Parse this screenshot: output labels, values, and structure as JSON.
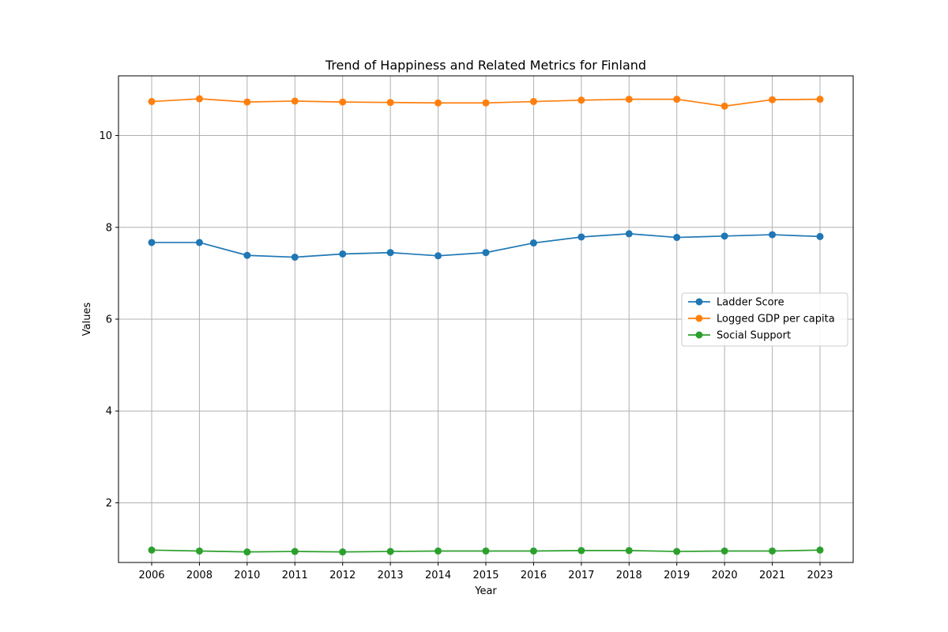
{
  "chart_data": {
    "type": "line",
    "title": "Trend of Happiness and Related Metrics for Finland",
    "xlabel": "Year",
    "ylabel": "Values",
    "categories": [
      "2006",
      "2008",
      "2010",
      "2011",
      "2012",
      "2013",
      "2014",
      "2015",
      "2016",
      "2017",
      "2018",
      "2019",
      "2020",
      "2021",
      "2023"
    ],
    "ylim": [
      0.7,
      11.3
    ],
    "yticks": [
      2,
      4,
      6,
      8,
      10
    ],
    "grid": true,
    "legend_position": "center-right",
    "series": [
      {
        "name": "Ladder Score",
        "color": "#1f77b4",
        "values": [
          7.67,
          7.67,
          7.39,
          7.35,
          7.42,
          7.45,
          7.38,
          7.45,
          7.66,
          7.79,
          7.86,
          7.78,
          7.81,
          7.84,
          7.8
        ]
      },
      {
        "name": "Logged GDP per capita",
        "color": "#ff7f0e",
        "values": [
          10.74,
          10.8,
          10.73,
          10.75,
          10.73,
          10.72,
          10.71,
          10.71,
          10.74,
          10.77,
          10.79,
          10.79,
          10.64,
          10.78,
          10.79
        ]
      },
      {
        "name": "Social Support",
        "color": "#2ca02c",
        "values": [
          0.97,
          0.95,
          0.93,
          0.94,
          0.93,
          0.94,
          0.95,
          0.95,
          0.95,
          0.96,
          0.96,
          0.94,
          0.95,
          0.95,
          0.97
        ]
      }
    ]
  }
}
